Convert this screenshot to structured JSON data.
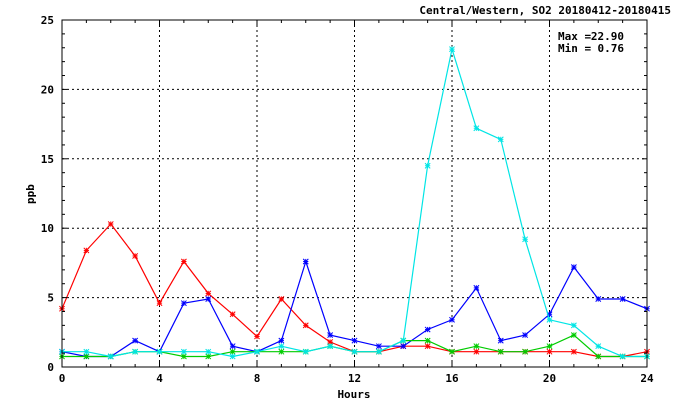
{
  "chart_data": {
    "type": "line",
    "title": "Central/Western, SO2 20180412-20180415",
    "xlabel": "Hours",
    "ylabel": "ppb",
    "xlim": [
      0,
      24
    ],
    "ylim": [
      0,
      25
    ],
    "xticks": [
      0,
      4,
      8,
      12,
      16,
      20,
      24
    ],
    "yticks": [
      0,
      5,
      10,
      15,
      20,
      25
    ],
    "grid": true,
    "stats": {
      "max_label": "Max =",
      "max_value": "22.90",
      "min_label": "Min =",
      "min_value": "0.76"
    },
    "x": [
      0,
      1,
      2,
      3,
      4,
      5,
      6,
      7,
      8,
      9,
      10,
      11,
      12,
      13,
      14,
      15,
      16,
      17,
      18,
      19,
      20,
      21,
      22,
      23,
      24
    ],
    "series": [
      {
        "color": "#ff0000",
        "values": [
          4.2,
          8.4,
          10.3,
          8.0,
          4.6,
          7.6,
          5.3,
          3.8,
          2.2,
          4.9,
          3.0,
          1.8,
          1.1,
          1.1,
          1.5,
          1.5,
          1.1,
          1.1,
          1.1,
          1.1,
          1.1,
          1.1,
          0.76,
          0.76,
          1.1
        ]
      },
      {
        "color": "#0000ff",
        "values": [
          1.1,
          0.76,
          0.76,
          1.9,
          1.1,
          4.6,
          4.9,
          1.5,
          1.1,
          1.9,
          7.6,
          2.3,
          1.9,
          1.5,
          1.5,
          2.7,
          3.4,
          5.7,
          1.9,
          2.3,
          3.8,
          7.2,
          4.9,
          4.9,
          4.2
        ]
      },
      {
        "color": "#00cc00",
        "values": [
          0.76,
          0.76,
          0.76,
          1.1,
          1.1,
          0.76,
          0.76,
          1.1,
          1.1,
          1.1,
          1.1,
          1.5,
          1.1,
          1.1,
          1.9,
          1.9,
          1.1,
          1.5,
          1.1,
          1.1,
          1.5,
          2.3,
          0.76,
          0.76,
          0.76
        ]
      },
      {
        "color": "#00e5e5",
        "values": [
          1.1,
          1.1,
          0.76,
          1.1,
          1.1,
          1.1,
          1.1,
          0.76,
          1.1,
          1.5,
          1.1,
          1.5,
          1.1,
          1.1,
          1.9,
          14.5,
          22.9,
          17.2,
          16.4,
          9.2,
          3.4,
          3.0,
          1.5,
          0.76,
          0.76
        ]
      }
    ]
  }
}
